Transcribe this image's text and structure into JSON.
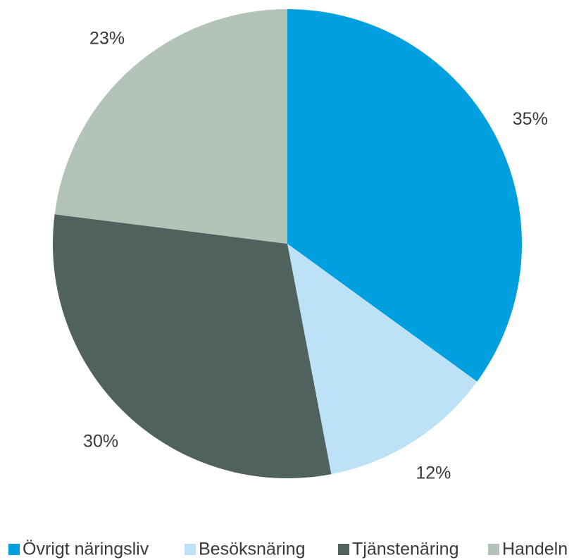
{
  "chart_data": {
    "type": "pie",
    "categories": [
      "Övrigt näringsliv",
      "Besöksnäring",
      "Tjänstenäring",
      "Handeln"
    ],
    "values": [
      35,
      12,
      30,
      23
    ],
    "value_labels": [
      "35%",
      "12%",
      "30%",
      "23%"
    ],
    "colors": [
      "#009fdf",
      "#bde2f7",
      "#4f625e",
      "#b3c3b8"
    ],
    "legend": "bottom"
  }
}
